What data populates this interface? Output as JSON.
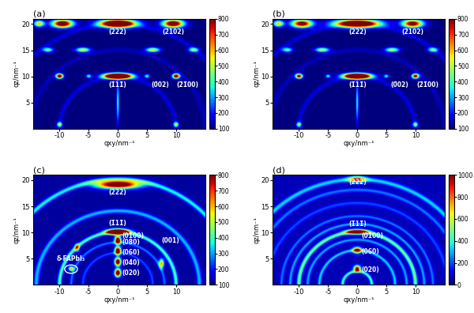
{
  "chart_data": [
    {
      "type": "heatmap",
      "title": "(a)",
      "xlabel": "qxy/nm⁻¹",
      "ylabel": "qz/nm⁻¹",
      "xlim": [
        -14.5,
        15
      ],
      "ylim": [
        0,
        21
      ],
      "xticks": [
        -10,
        -5,
        0,
        5,
        10
      ],
      "yticks": [
        5,
        10,
        15,
        20
      ],
      "color": "jet",
      "colorbar": {
        "lim": [
          100,
          800
        ],
        "ticks": [
          100,
          200,
          300,
          400,
          500,
          600,
          700,
          800
        ]
      },
      "background": 100,
      "spots": [
        {
          "x": 0,
          "z": 10,
          "intensity": 1500,
          "sx": 1.5,
          "sz": 0.35
        },
        {
          "x": 0,
          "z": 20,
          "intensity": 1200,
          "sx": 2.0,
          "sz": 0.5
        },
        {
          "x": 9.5,
          "z": 20,
          "intensity": 900,
          "sx": 1.2,
          "sz": 0.5
        },
        {
          "x": -9.5,
          "z": 20,
          "intensity": 900,
          "sx": 1.2,
          "sz": 0.5
        },
        {
          "x": -13.5,
          "z": 20,
          "intensity": 500,
          "sx": 0.6,
          "sz": 0.4
        },
        {
          "x": 10,
          "z": 10,
          "intensity": 900,
          "sx": 0.4,
          "sz": 0.3
        },
        {
          "x": -10,
          "z": 10,
          "intensity": 900,
          "sx": 0.4,
          "sz": 0.3
        },
        {
          "x": 5,
          "z": 10,
          "intensity": 300,
          "sx": 0.3,
          "sz": 0.25
        },
        {
          "x": -5,
          "z": 10,
          "intensity": 300,
          "sx": 0.3,
          "sz": 0.25
        },
        {
          "x": 6,
          "z": 15,
          "intensity": 450,
          "sx": 0.8,
          "sz": 0.3
        },
        {
          "x": -6,
          "z": 15,
          "intensity": 450,
          "sx": 0.8,
          "sz": 0.3
        },
        {
          "x": -12,
          "z": 15,
          "intensity": 350,
          "sx": 0.6,
          "sz": 0.3
        },
        {
          "x": 13,
          "z": 15,
          "intensity": 350,
          "sx": 0.6,
          "sz": 0.3
        },
        {
          "x": 10,
          "z": 0.8,
          "intensity": 400,
          "sx": 0.3,
          "sz": 0.3
        },
        {
          "x": -10,
          "z": 0.8,
          "intensity": 400,
          "sx": 0.3,
          "sz": 0.3
        },
        {
          "x": 0,
          "z": 5,
          "intensity": 300,
          "sx": 0.15,
          "sz": 2.5
        }
      ],
      "rings": [
        {
          "radius": 10,
          "intensity": 60,
          "width": 0.3
        },
        {
          "radius": 15,
          "intensity": 40,
          "width": 0.3
        },
        {
          "radius": 20,
          "intensity": 60,
          "width": 0.3
        }
      ],
      "labels": [
        {
          "text": "(222)",
          "x": 0,
          "z": 18.4
        },
        {
          "text": "(2̄102)",
          "x": 9.5,
          "z": 18.4
        },
        {
          "text": "(1̄11̄)",
          "x": 0,
          "z": 8.4
        },
        {
          "text": "(0̄02)",
          "x": 7.3,
          "z": 8.4
        },
        {
          "text": "(2̄1̄00)",
          "x": 12,
          "z": 8.4
        }
      ]
    },
    {
      "type": "heatmap",
      "title": "(b)",
      "xlabel": "qxy/nm⁻¹",
      "ylabel": "qz/nm⁻¹",
      "xlim": [
        -14.5,
        15
      ],
      "ylim": [
        0,
        21
      ],
      "xticks": [
        -10,
        -5,
        0,
        5,
        10
      ],
      "yticks": [
        5,
        10,
        15,
        20
      ],
      "color": "jet",
      "colorbar": {
        "lim": [
          100,
          800
        ],
        "ticks": [
          100,
          200,
          300,
          400,
          500,
          600,
          700,
          800
        ]
      },
      "background": 100,
      "spots": [
        {
          "x": 0,
          "z": 10,
          "intensity": 1400,
          "sx": 1.5,
          "sz": 0.35
        },
        {
          "x": 0,
          "z": 20,
          "intensity": 1100,
          "sx": 2.5,
          "sz": 0.5
        },
        {
          "x": 9.5,
          "z": 20,
          "intensity": 800,
          "sx": 1.2,
          "sz": 0.5
        },
        {
          "x": -9.5,
          "z": 20,
          "intensity": 800,
          "sx": 1.2,
          "sz": 0.5
        },
        {
          "x": -13.5,
          "z": 20,
          "intensity": 500,
          "sx": 0.6,
          "sz": 0.4
        },
        {
          "x": 10,
          "z": 10,
          "intensity": 800,
          "sx": 0.4,
          "sz": 0.3
        },
        {
          "x": -10,
          "z": 10,
          "intensity": 800,
          "sx": 0.4,
          "sz": 0.3
        },
        {
          "x": 5,
          "z": 10,
          "intensity": 280,
          "sx": 0.3,
          "sz": 0.25
        },
        {
          "x": -5,
          "z": 10,
          "intensity": 280,
          "sx": 0.3,
          "sz": 0.25
        },
        {
          "x": 6,
          "z": 15,
          "intensity": 420,
          "sx": 0.8,
          "sz": 0.3
        },
        {
          "x": -6,
          "z": 15,
          "intensity": 420,
          "sx": 0.8,
          "sz": 0.3
        },
        {
          "x": -12,
          "z": 15,
          "intensity": 330,
          "sx": 0.6,
          "sz": 0.3
        },
        {
          "x": 13,
          "z": 15,
          "intensity": 330,
          "sx": 0.6,
          "sz": 0.3
        },
        {
          "x": 10,
          "z": 0.8,
          "intensity": 350,
          "sx": 0.3,
          "sz": 0.3
        },
        {
          "x": -10,
          "z": 0.8,
          "intensity": 350,
          "sx": 0.3,
          "sz": 0.3
        },
        {
          "x": 0,
          "z": 5,
          "intensity": 280,
          "sx": 0.15,
          "sz": 2.5
        }
      ],
      "rings": [
        {
          "radius": 10,
          "intensity": 60,
          "width": 0.3
        },
        {
          "radius": 15,
          "intensity": 40,
          "width": 0.3
        },
        {
          "radius": 20,
          "intensity": 60,
          "width": 0.3
        }
      ],
      "labels": [
        {
          "text": "(222)",
          "x": 0,
          "z": 18.4
        },
        {
          "text": "(2̄102)",
          "x": 9.5,
          "z": 18.4
        },
        {
          "text": "(1̄11̄)",
          "x": 0,
          "z": 8.4
        },
        {
          "text": "(0̄02)",
          "x": 7.3,
          "z": 8.4
        },
        {
          "text": "(2̄1̄00)",
          "x": 12,
          "z": 8.4
        }
      ]
    },
    {
      "type": "heatmap",
      "title": "(c)",
      "xlabel": "qxy/nm⁻¹",
      "ylabel": "qz/nm⁻¹",
      "xlim": [
        -14.5,
        15
      ],
      "ylim": [
        0,
        21
      ],
      "xticks": [
        -10,
        -5,
        0,
        5,
        10
      ],
      "yticks": [
        5,
        10,
        15,
        20
      ],
      "color": "jet",
      "colorbar": {
        "lim": [
          100,
          800
        ],
        "ticks": [
          100,
          200,
          300,
          400,
          500,
          600,
          700,
          800
        ]
      },
      "background": 120,
      "spots": [
        {
          "x": 0,
          "z": 2.2,
          "intensity": 900,
          "sx": 0.35,
          "sz": 0.5
        },
        {
          "x": 0,
          "z": 4.3,
          "intensity": 900,
          "sx": 0.35,
          "sz": 0.5
        },
        {
          "x": 0,
          "z": 6.4,
          "intensity": 900,
          "sx": 0.35,
          "sz": 0.5
        },
        {
          "x": 0,
          "z": 8.4,
          "intensity": 900,
          "sx": 0.35,
          "sz": 0.5
        },
        {
          "x": 0,
          "z": 10,
          "intensity": 1200,
          "sx": 1.2,
          "sz": 0.35
        },
        {
          "x": 0,
          "z": 19,
          "intensity": 900,
          "sx": 2.5,
          "sz": 0.5
        },
        {
          "x": 7.5,
          "z": 4,
          "intensity": 500,
          "sx": 0.3,
          "sz": 0.6
        },
        {
          "x": -7,
          "z": 7,
          "intensity": 400,
          "sx": 0.3,
          "sz": 0.5
        },
        {
          "x": -8,
          "z": 3,
          "intensity": 500,
          "sx": 0.3,
          "sz": 0.3
        }
      ],
      "rings": [
        {
          "radius": 6,
          "intensity": 120,
          "width": 0.2
        },
        {
          "radius": 8,
          "intensity": 150,
          "width": 0.2
        },
        {
          "radius": 10,
          "intensity": 300,
          "width": 0.25
        },
        {
          "radius": 14,
          "intensity": 200,
          "width": 0.3
        },
        {
          "radius": 20,
          "intensity": 250,
          "width": 0.3
        }
      ],
      "delta_spot": {
        "x": -8,
        "z": 3
      },
      "labels": [
        {
          "text": "(222)",
          "x": 0,
          "z": 17.6
        },
        {
          "text": "(1̄11̄)",
          "x": 0,
          "z": 11.8
        },
        {
          "text": "(0100)",
          "x": 2.6,
          "z": 9.4
        },
        {
          "text": "(080)",
          "x": 2.2,
          "z": 8.2
        },
        {
          "text": "(060)",
          "x": 2.2,
          "z": 6.2
        },
        {
          "text": "(040)",
          "x": 2.2,
          "z": 4.2
        },
        {
          "text": "(020)",
          "x": 2.2,
          "z": 2.2
        },
        {
          "text": "(001)",
          "x": 9,
          "z": 8.5
        },
        {
          "text": "δ-FAPbI₃",
          "x": -8,
          "z": 5
        }
      ]
    },
    {
      "type": "heatmap",
      "title": "(d)",
      "xlabel": "qxy/nm⁻¹",
      "ylabel": "qz/nm⁻¹",
      "xlim": [
        -14.5,
        15
      ],
      "ylim": [
        0,
        21
      ],
      "xticks": [
        -10,
        -5,
        0,
        5,
        10
      ],
      "yticks": [
        5,
        10,
        15,
        20
      ],
      "color": "jet",
      "colorbar": {
        "lim": [
          0,
          1000
        ],
        "ticks": [
          0,
          200,
          400,
          600,
          800,
          1000
        ]
      },
      "background": 50,
      "spots": [
        {
          "x": 0,
          "z": 3,
          "intensity": 1000,
          "sx": 0.4,
          "sz": 0.4
        },
        {
          "x": 0,
          "z": 6.5,
          "intensity": 900,
          "sx": 0.5,
          "sz": 0.4
        },
        {
          "x": 0,
          "z": 10,
          "intensity": 1100,
          "sx": 1.2,
          "sz": 0.3
        },
        {
          "x": 0,
          "z": 20,
          "intensity": 700,
          "sx": 1.0,
          "sz": 0.4
        }
      ],
      "rings": [
        {
          "radius": 2.5,
          "intensity": 400,
          "width": 0.2
        },
        {
          "radius": 6.5,
          "intensity": 300,
          "width": 0.2
        },
        {
          "radius": 8.5,
          "intensity": 250,
          "width": 0.2
        },
        {
          "radius": 10,
          "intensity": 450,
          "width": 0.25
        },
        {
          "radius": 11.5,
          "intensity": 250,
          "width": 0.2
        },
        {
          "radius": 13,
          "intensity": 200,
          "width": 0.2
        },
        {
          "radius": 15.5,
          "intensity": 150,
          "width": 0.25
        },
        {
          "radius": 18,
          "intensity": 200,
          "width": 0.25
        },
        {
          "radius": 20,
          "intensity": 300,
          "width": 0.3
        }
      ],
      "labels": [
        {
          "text": "(222)",
          "x": 0,
          "z": 19.6
        },
        {
          "text": "(1̄11̄)",
          "x": 0,
          "z": 11.6
        },
        {
          "text": "(0100)",
          "x": 2.6,
          "z": 9.4
        },
        {
          "text": "(060)",
          "x": 2.2,
          "z": 6.3
        },
        {
          "text": "(020)",
          "x": 2.2,
          "z": 2.8
        }
      ]
    }
  ]
}
